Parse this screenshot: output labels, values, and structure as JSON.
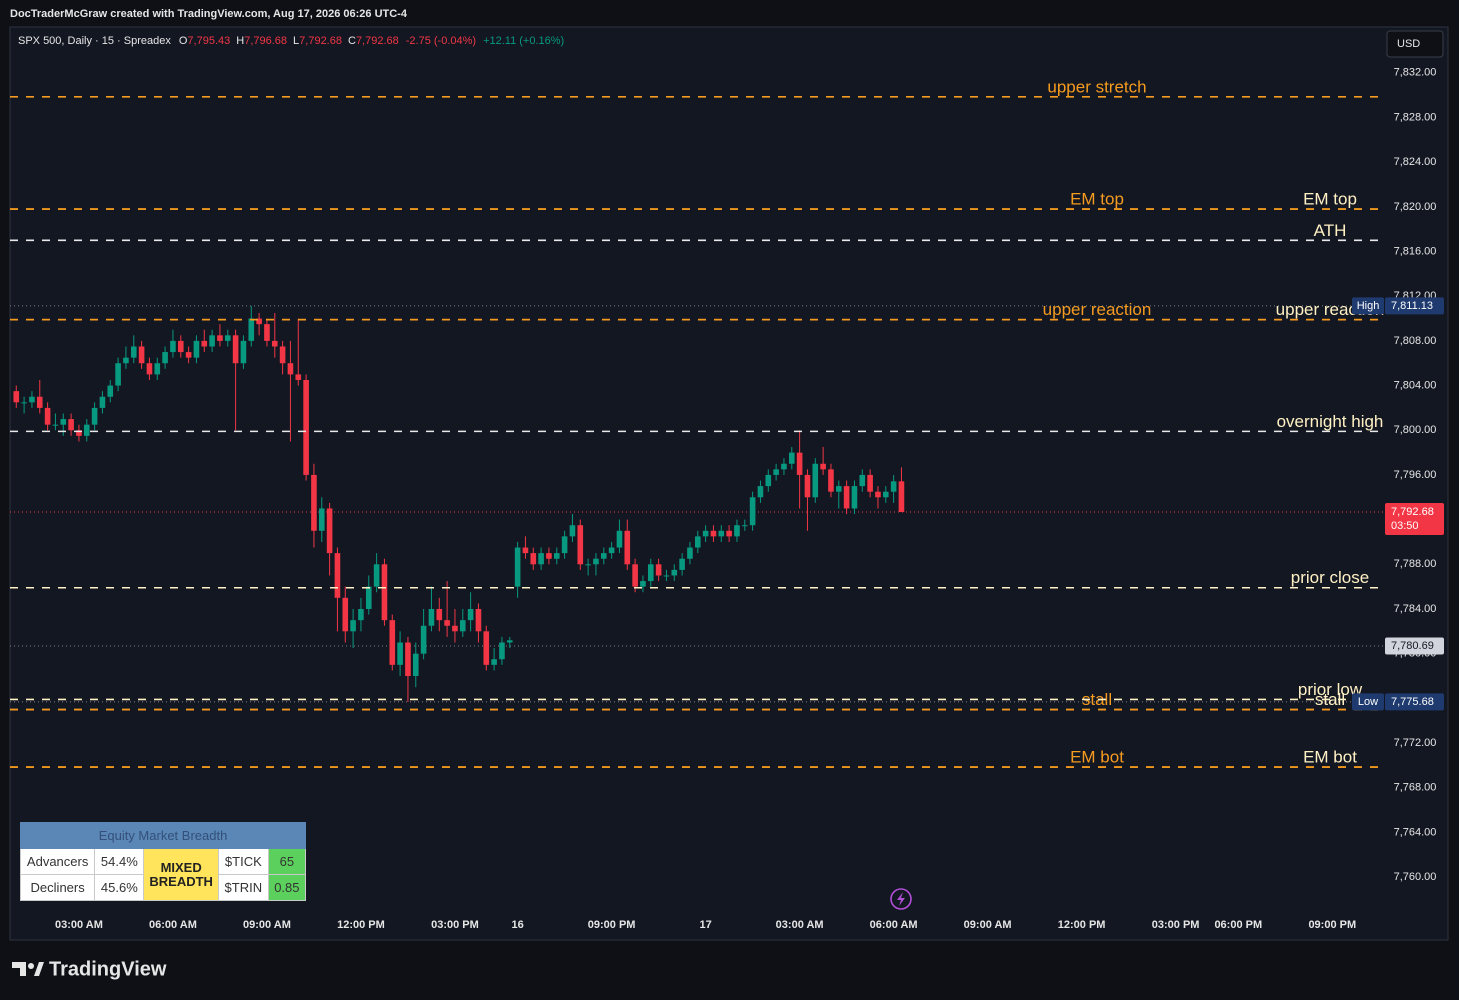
{
  "credit": "DocTraderMcGraw created with TradingView.com, Aug 17, 2026 06:26 UTC-4",
  "brand": "TradingView",
  "chart_data": {
    "type": "candlestick",
    "symbol": "SPX 500, Daily · 15 · Spreadex",
    "currency": "USD",
    "up_color": "#089981",
    "down_color": "#f23645",
    "header_values": [
      {
        "label": "O",
        "text": "7,795.43"
      },
      {
        "label": "H",
        "text": "7,796.68"
      },
      {
        "label": "L",
        "text": "7,792.68"
      },
      {
        "label": "C",
        "text": "7,792.68"
      }
    ],
    "changes": [
      {
        "text": "-2.75 (-0.04%)",
        "color": "#f23645"
      },
      {
        "text": "+12.11 (+0.16%)",
        "color": "#089981"
      }
    ],
    "xlim": [
      -0.8,
      174.6
    ],
    "ylim": [
      7757.5,
      7836.1
    ],
    "grid": false,
    "xticks": [
      {
        "value": 8,
        "label": "03:00 AM"
      },
      {
        "value": 20,
        "label": "06:00 AM"
      },
      {
        "value": 32,
        "label": "09:00 AM"
      },
      {
        "value": 44,
        "label": "12:00 PM"
      },
      {
        "value": 56,
        "label": "03:00 PM"
      },
      {
        "value": 64,
        "label": "16"
      },
      {
        "value": 76,
        "label": "09:00 PM"
      },
      {
        "value": 88,
        "label": "17"
      },
      {
        "value": 100,
        "label": "03:00 AM"
      },
      {
        "value": 112,
        "label": "06:00 AM"
      },
      {
        "value": 124,
        "label": "09:00 AM"
      },
      {
        "value": 136,
        "label": "12:00 PM"
      },
      {
        "value": 148,
        "label": "03:00 PM"
      },
      {
        "value": 156,
        "label": "06:00 PM"
      },
      {
        "value": 168,
        "label": "09:00 PM"
      }
    ],
    "yticks": [
      {
        "value": 7760,
        "label": "7,760.00"
      },
      {
        "value": 7764,
        "label": "7,764.00"
      },
      {
        "value": 7768,
        "label": "7,768.00"
      },
      {
        "value": 7772,
        "label": "7,772.00"
      },
      {
        "value": 7776,
        "label": "7,776.00"
      },
      {
        "value": 7780,
        "label": "7,780.00"
      },
      {
        "value": 7784,
        "label": "7,784.00"
      },
      {
        "value": 7788,
        "label": "7,788.00"
      },
      {
        "value": 7792,
        "label": "7,792.00"
      },
      {
        "value": 7796,
        "label": "7,796.00"
      },
      {
        "value": 7800,
        "label": "7,800.00"
      },
      {
        "value": 7804,
        "label": "7,804.00"
      },
      {
        "value": 7808,
        "label": "7,808.00"
      },
      {
        "value": 7812,
        "label": "7,812.00"
      },
      {
        "value": 7816,
        "label": "7,816.00"
      },
      {
        "value": 7820,
        "label": "7,820.00"
      },
      {
        "value": 7824,
        "label": "7,824.00"
      },
      {
        "value": 7828,
        "label": "7,828.00"
      },
      {
        "value": 7832,
        "label": "7,832.00"
      }
    ],
    "open": [
      7803.5,
      7802.5,
      7802.5,
      7803,
      7802,
      7800.5,
      7800.5,
      7801,
      7800,
      7799.5,
      7800.5,
      7802,
      7803,
      7804,
      7806,
      7806.5,
      7807.5,
      7806,
      7805,
      7806,
      7807,
      7808,
      7807,
      7806.5,
      7808,
      7807.5,
      7808.5,
      7808,
      7808.5,
      7806,
      7808,
      7810,
      7809.5,
      7808,
      7807.5,
      7806,
      7805,
      7804.5,
      7796,
      7791,
      7793,
      7789,
      7785,
      7782,
      7783,
      7784,
      7786,
      7788,
      7783,
      7779,
      7781,
      7778,
      7780,
      7782.5,
      7784,
      7783,
      7782.5,
      7782,
      7783,
      7784,
      7782,
      7779,
      7779.5,
      7781,
      7786,
      7789.5,
      7789,
      7788,
      7789,
      7788.5,
      7789,
      7790.5,
      7791.5,
      7788,
      7788,
      7788.5,
      7789,
      7789.5,
      7791,
      7788,
      7786,
      7786.5,
      7788,
      7787,
      7787,
      7787.5,
      7788.5,
      7789.5,
      7790.5,
      7791,
      7790.5,
      7791,
      7790.5,
      7791.5,
      7791.5,
      7794,
      7795,
      7796,
      7796.5,
      7797,
      7798,
      7796,
      7794,
      7797,
      7796.5,
      7794.5,
      7795,
      7793,
      7795,
      7796,
      7794.5,
      7794,
      7794.5,
      7795.43
    ],
    "high": [
      7804,
      7803,
      7803.5,
      7804.5,
      7802.5,
      7801.5,
      7801.5,
      7801.5,
      7800.5,
      7801,
      7802.5,
      7803.5,
      7804.5,
      7806.5,
      7807.5,
      7808.5,
      7808,
      7806.5,
      7806.5,
      7807.5,
      7809,
      7808.5,
      7807.5,
      7808.5,
      7809,
      7809,
      7809.5,
      7809,
      7809,
      7808.5,
      7811.13,
      7810.5,
      7810,
      7810.5,
      7808,
      7808,
      7810,
      7805,
      7797,
      7794,
      7793.5,
      7789.5,
      7786,
      7784,
      7785,
      7787,
      7789,
      7788.5,
      7783.5,
      7782,
      7781.5,
      7781,
      7784,
      7786,
      7785,
      7786.5,
      7784,
      7784,
      7785.5,
      7784.5,
      7782.5,
      7780.5,
      7781.5,
      7781.5,
      7790,
      7790.5,
      7789.5,
      7789.5,
      7789.5,
      7789.5,
      7791,
      7792.5,
      7792,
      7788.5,
      7789,
      7789.5,
      7790,
      7792,
      7792,
      7788.5,
      7787,
      7788.5,
      7788.5,
      7787.5,
      7788,
      7789,
      7790,
      7791,
      7791.5,
      7791.5,
      7791.5,
      7791.5,
      7792,
      7792,
      7794.5,
      7795.5,
      7796.5,
      7797,
      7797.5,
      7798.5,
      7800,
      7796.5,
      7797.5,
      7798.5,
      7797,
      7795.5,
      7795.5,
      7795.5,
      7796.5,
      7796.5,
      7795,
      7795,
      7796,
      7796.68
    ],
    "low": [
      7802,
      7801.5,
      7802,
      7801.5,
      7800,
      7800,
      7799.5,
      7799.5,
      7799,
      7799,
      7800,
      7801.5,
      7802.5,
      7803.5,
      7805.5,
      7806,
      7805.5,
      7804.5,
      7804.5,
      7805.5,
      7806.5,
      7806.5,
      7806,
      7806,
      7807,
      7807,
      7807.5,
      7807.5,
      7800,
      7805.5,
      7807.5,
      7808.5,
      7807.5,
      7806.5,
      7805,
      7799,
      7804,
      7795.5,
      7789.5,
      7790,
      7787,
      7782,
      7781,
      7780.5,
      7782,
      7783.5,
      7785.5,
      7782.5,
      7778.5,
      7778,
      7775.68,
      7777,
      7779.5,
      7782,
      7782,
      7781.5,
      7781,
      7781.5,
      7782,
      7781,
      7778.5,
      7778.5,
      7779,
      7780.5,
      7785,
      7788.5,
      7787.5,
      7787.5,
      7788,
      7788,
      7788.5,
      7790,
      7787.5,
      7787,
      7787,
      7788,
      7788.5,
      7789,
      7787.5,
      7785.5,
      7785.5,
      7786,
      7786.5,
      7786.5,
      7786.5,
      7787,
      7788,
      7789,
      7790,
      7790,
      7790,
      7790,
      7790,
      7791,
      7791,
      7793.5,
      7794.5,
      7795.5,
      7796,
      7796.5,
      7793,
      7791,
      7793.5,
      7796,
      7794,
      7793,
      7792.5,
      7792.5,
      7794.5,
      7794,
      7793,
      7793.5,
      7793.5,
      7792.68
    ],
    "close": [
      7802.5,
      7802.5,
      7803,
      7802,
      7800.5,
      7800.5,
      7801,
      7800,
      7799.5,
      7800.5,
      7802,
      7803,
      7804,
      7806,
      7806.5,
      7807.5,
      7806,
      7805,
      7806,
      7807,
      7808,
      7807,
      7806.5,
      7808,
      7807.5,
      7808.5,
      7808,
      7808.5,
      7806,
      7808,
      7810,
      7809.5,
      7808,
      7807.5,
      7806,
      7805,
      7804.5,
      7796,
      7791,
      7793,
      7789,
      7785,
      7782,
      7783,
      7784,
      7786,
      7788,
      7783,
      7779,
      7781,
      7778,
      7780,
      7782.5,
      7784,
      7783,
      7782.5,
      7782,
      7783,
      7784,
      7782,
      7779,
      7779.5,
      7781,
      7781.2,
      7789.5,
      7789,
      7788,
      7789,
      7788.5,
      7789,
      7790.5,
      7791.5,
      7788,
      7788,
      7788.5,
      7789,
      7789.5,
      7791,
      7788,
      7786,
      7786.5,
      7788,
      7787,
      7787,
      7787.5,
      7788.5,
      7789.5,
      7790.5,
      7791,
      7790.5,
      7791,
      7790.5,
      7791.5,
      7791.5,
      7794,
      7795,
      7796,
      7796.5,
      7797,
      7798,
      7796,
      7794,
      7797,
      7796.5,
      7794.5,
      7795,
      7793,
      7795,
      7796,
      7794.5,
      7794,
      7794.5,
      7795.43,
      7792.68
    ],
    "levels": {
      "label_color": "#f59b1f",
      "items": [
        {
          "name": "upper stretch",
          "value": 7829.85,
          "color": "#f59b1f"
        },
        {
          "name": "EM top",
          "value": 7819.8,
          "color": "#f59b1f"
        },
        {
          "name": "upper reaction",
          "value": 7809.9,
          "color": "#f59b1f"
        },
        {
          "name": "stall",
          "value": 7775.0,
          "color": "#f59b1f"
        },
        {
          "name": "EM bot",
          "value": 7769.85,
          "color": "#f59b1f"
        }
      ]
    },
    "reference_levels": {
      "label_color": "#fff1c4",
      "items": [
        {
          "name": "EM top",
          "value": 7819.8,
          "color": "#f59b1f"
        },
        {
          "name": "ATH",
          "value": 7817.0,
          "color": "#e8e8e8"
        },
        {
          "name": "upper reaction",
          "value": 7809.9,
          "color": "#f59b1f"
        },
        {
          "name": "overnight high",
          "value": 7799.9,
          "color": "#e8e8e8"
        },
        {
          "name": "prior close",
          "value": 7785.9,
          "color": "#fff1c4"
        },
        {
          "name": "prior low",
          "value": 7775.9,
          "color": "#fff1c4"
        },
        {
          "name": "stall",
          "value": 7775.0,
          "color": "#f59b1f"
        },
        {
          "name": "EM bot",
          "value": 7769.85,
          "color": "#f59b1f"
        }
      ]
    },
    "price_labels": [
      {
        "tag": "High",
        "value": 7811.13,
        "label": "7,811.13",
        "color": "#1e3a6e"
      },
      {
        "value": 7792.68,
        "label": "7,792.68",
        "countdown": "03:50",
        "color": "#f23645"
      },
      {
        "value": 7780.69,
        "label": "7,780.69",
        "color": "#d1d4dc"
      },
      {
        "tag": "Low",
        "value": 7775.68,
        "label": "7,775.68",
        "color": "#1e3a6e"
      }
    ]
  },
  "breadth_table": {
    "title": "Equity Market Breadth",
    "rows": [
      [
        "Advancers",
        "54.4%"
      ],
      [
        "Decliners",
        "45.6%"
      ]
    ],
    "status": "MIXED BREADTH",
    "indicators": [
      [
        "$TICK",
        "65"
      ],
      [
        "$TRIN",
        "0.85"
      ]
    ]
  }
}
